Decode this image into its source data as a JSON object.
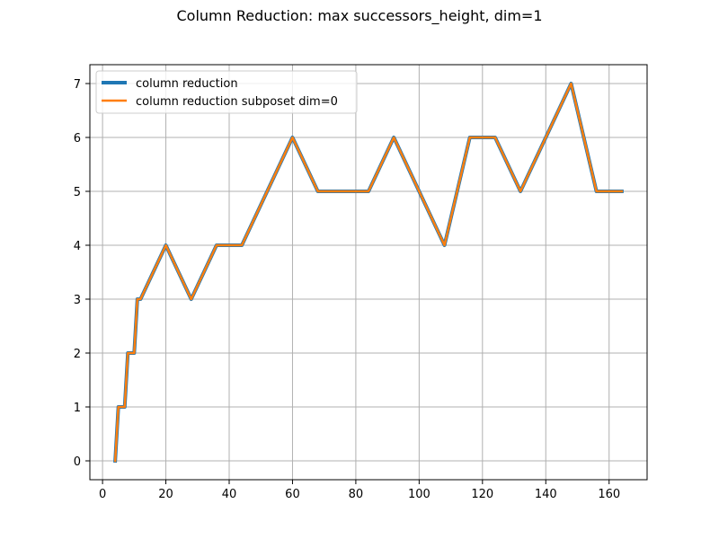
{
  "chart_data": {
    "type": "line",
    "title": "Column Reduction: max successors_height, dim=1",
    "xlabel": "",
    "ylabel": "",
    "xlim": [
      -4,
      172
    ],
    "ylim": [
      -0.35,
      7.35
    ],
    "xticks": [
      0,
      20,
      40,
      60,
      80,
      100,
      120,
      140,
      160
    ],
    "yticks": [
      0,
      1,
      2,
      3,
      4,
      5,
      6,
      7
    ],
    "grid": true,
    "legend_position": "top-left",
    "series": [
      {
        "name": "column reduction",
        "color": "#1f77b4",
        "x": [
          4,
          5,
          6,
          7,
          8,
          9,
          10,
          11,
          12,
          20,
          28,
          36,
          44,
          60,
          68,
          76,
          84,
          92,
          100,
          108,
          116,
          124,
          132,
          140,
          148,
          156,
          164
        ],
        "y": [
          0,
          1,
          1,
          1,
          2,
          2,
          2,
          3,
          3,
          4,
          3,
          4,
          4,
          6,
          5,
          5,
          5,
          6,
          5,
          4,
          6,
          6,
          5,
          6,
          7,
          5,
          5
        ]
      },
      {
        "name": "column reduction subposet dim=0",
        "color": "#ff7f0e",
        "x": [
          4,
          5,
          6,
          7,
          8,
          9,
          10,
          11,
          12,
          20,
          28,
          36,
          44,
          60,
          68,
          76,
          84,
          92,
          100,
          108,
          116,
          124,
          132,
          140,
          148,
          156,
          164
        ],
        "y": [
          0,
          1,
          1,
          1,
          2,
          2,
          2,
          3,
          3,
          4,
          3,
          4,
          4,
          6,
          5,
          5,
          5,
          6,
          5,
          4,
          6,
          6,
          5,
          6,
          7,
          5,
          5
        ]
      }
    ]
  }
}
